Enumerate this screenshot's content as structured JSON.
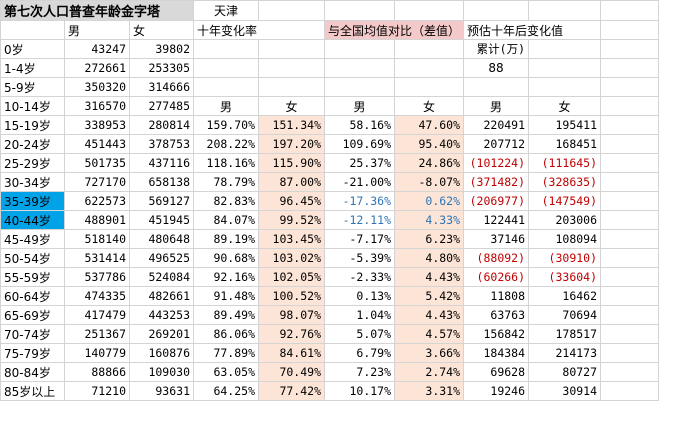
{
  "title": "第七次人口普查年龄金字塔",
  "region": "天津",
  "headers": {
    "male": "男",
    "female": "女",
    "change10": "十年变化率",
    "vs_national": "与全国均值对比（差值）",
    "forecast": "预估十年后变化值",
    "cumulative": "累计(万)",
    "cumulative_value": "88"
  },
  "rows": [
    {
      "age": "0岁",
      "m": "43247",
      "f": "39802",
      "cm": "",
      "cf": "",
      "dm": "",
      "df": "",
      "pm": "",
      "pf": ""
    },
    {
      "age": "1-4岁",
      "m": "272661",
      "f": "253305",
      "cm": "",
      "cf": "",
      "dm": "",
      "df": "",
      "pm": "",
      "pf": ""
    },
    {
      "age": "5-9岁",
      "m": "350320",
      "f": "314666",
      "cm": "",
      "cf": "",
      "dm": "",
      "df": "",
      "pm": "",
      "pf": ""
    },
    {
      "age": "10-14岁",
      "m": "316570",
      "f": "277485",
      "cm": "男",
      "cf": "女",
      "dm": "男",
      "df": "女",
      "pm": "男",
      "pf": "女"
    },
    {
      "age": "15-19岁",
      "m": "338953",
      "f": "280814",
      "cm": "159.70%",
      "cf": "151.34%",
      "dm": "58.16%",
      "df": "47.60%",
      "pm": "220491",
      "pf": "195411"
    },
    {
      "age": "20-24岁",
      "m": "451443",
      "f": "378753",
      "cm": "208.22%",
      "cf": "197.20%",
      "dm": "109.69%",
      "df": "95.40%",
      "pm": "207712",
      "pf": "168451"
    },
    {
      "age": "25-29岁",
      "m": "501735",
      "f": "437116",
      "cm": "118.16%",
      "cf": "115.90%",
      "dm": "25.37%",
      "df": "24.86%",
      "pm": "(101224)",
      "pf": "(111645)"
    },
    {
      "age": "30-34岁",
      "m": "727170",
      "f": "658138",
      "cm": "78.79%",
      "cf": "87.00%",
      "dm": "-21.00%",
      "df": "-8.07%",
      "pm": "(371482)",
      "pf": "(328635)"
    },
    {
      "age": "35-39岁",
      "m": "622573",
      "f": "569127",
      "cm": "82.83%",
      "cf": "96.45%",
      "dm": "-17.36%",
      "df": "0.62%",
      "pm": "(206977)",
      "pf": "(147549)"
    },
    {
      "age": "40-44岁",
      "m": "488901",
      "f": "451945",
      "cm": "84.07%",
      "cf": "99.52%",
      "dm": "-12.11%",
      "df": "4.33%",
      "pm": "122441",
      "pf": "203006"
    },
    {
      "age": "45-49岁",
      "m": "518140",
      "f": "480648",
      "cm": "89.19%",
      "cf": "103.45%",
      "dm": "-7.17%",
      "df": "6.23%",
      "pm": "37146",
      "pf": "108094"
    },
    {
      "age": "50-54岁",
      "m": "531414",
      "f": "496525",
      "cm": "90.68%",
      "cf": "103.02%",
      "dm": "-5.39%",
      "df": "4.80%",
      "pm": "(88092)",
      "pf": "(30910)"
    },
    {
      "age": "55-59岁",
      "m": "537786",
      "f": "524084",
      "cm": "92.16%",
      "cf": "102.05%",
      "dm": "-2.33%",
      "df": "4.43%",
      "pm": "(60266)",
      "pf": "(33604)"
    },
    {
      "age": "60-64岁",
      "m": "474335",
      "f": "482661",
      "cm": "91.48%",
      "cf": "100.52%",
      "dm": "0.13%",
      "df": "5.42%",
      "pm": "11808",
      "pf": "16462"
    },
    {
      "age": "65-69岁",
      "m": "417479",
      "f": "443253",
      "cm": "89.49%",
      "cf": "98.07%",
      "dm": "1.04%",
      "df": "4.43%",
      "pm": "63763",
      "pf": "70694"
    },
    {
      "age": "70-74岁",
      "m": "251367",
      "f": "269201",
      "cm": "86.06%",
      "cf": "92.76%",
      "dm": "5.07%",
      "df": "4.57%",
      "pm": "156842",
      "pf": "178517"
    },
    {
      "age": "75-79岁",
      "m": "140779",
      "f": "160876",
      "cm": "77.89%",
      "cf": "84.61%",
      "dm": "6.79%",
      "df": "3.66%",
      "pm": "184384",
      "pf": "214173"
    },
    {
      "age": "80-84岁",
      "m": "88866",
      "f": "109030",
      "cm": "63.05%",
      "cf": "70.49%",
      "dm": "7.23%",
      "df": "2.74%",
      "pm": "69628",
      "pf": "80727"
    },
    {
      "age": "85岁以上",
      "m": "71210",
      "f": "93631",
      "cm": "64.25%",
      "cf": "77.42%",
      "dm": "10.17%",
      "df": "3.31%",
      "pm": "19246",
      "pf": "30914"
    }
  ]
}
